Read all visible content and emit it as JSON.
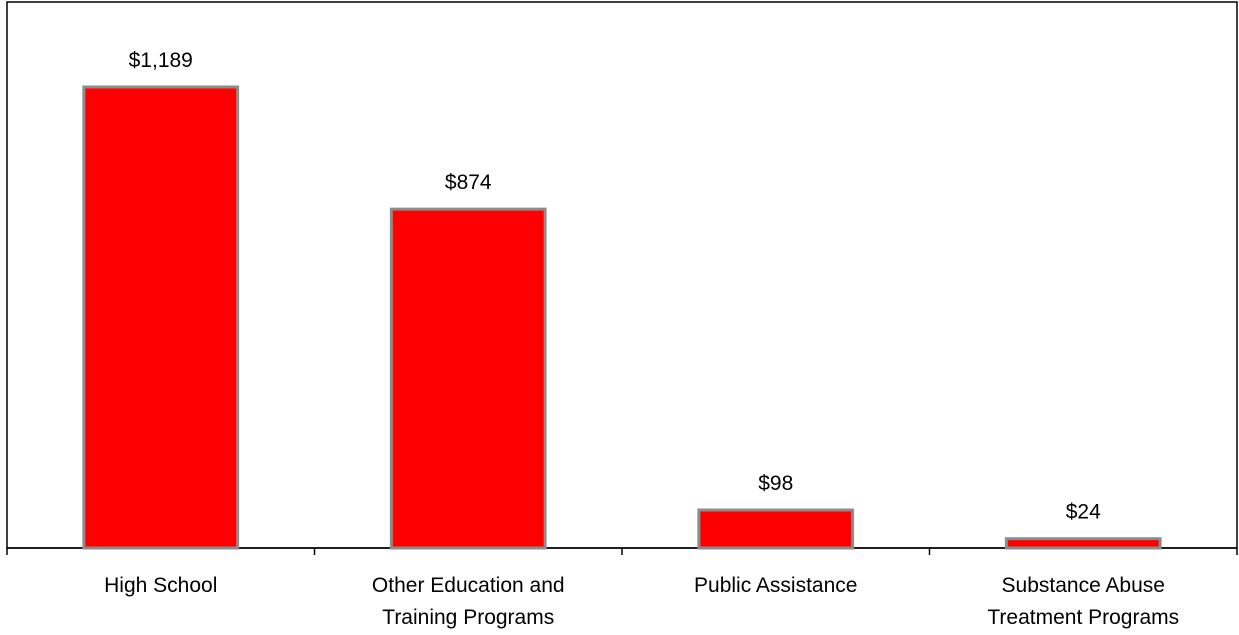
{
  "chart_data": {
    "type": "bar",
    "categories": [
      [
        "High School"
      ],
      [
        "Other Education and",
        "Training Programs"
      ],
      [
        "Public Assistance"
      ],
      [
        "Substance Abuse",
        "Treatment Programs"
      ]
    ],
    "values": [
      1189,
      874,
      98,
      24
    ],
    "data_labels": [
      "$1,189",
      "$874",
      "$98",
      "$24"
    ],
    "title": "",
    "xlabel": "",
    "ylabel": "",
    "ylim": [
      0,
      1400
    ],
    "grid": false,
    "legend": "none",
    "bar_color": "#ff0000",
    "bar_edge_color": "#8c8c8c"
  }
}
